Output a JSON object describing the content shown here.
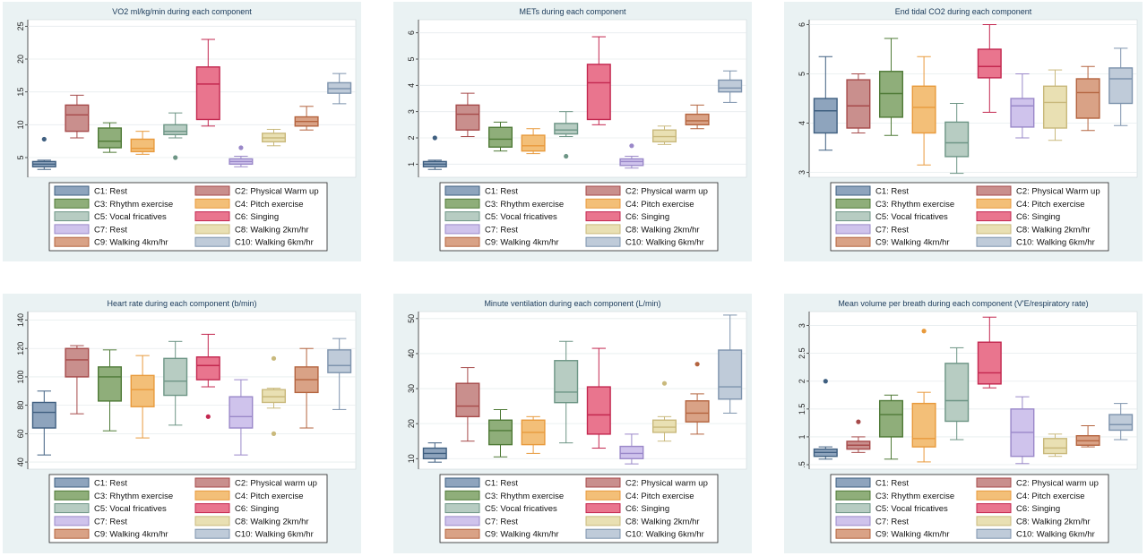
{
  "legend_entries": [
    [
      "C1: Rest",
      "C2: Physical warm up"
    ],
    [
      "C3: Rhythm exercise",
      "C4: Pitch exercise"
    ],
    [
      "C5: Vocal fricatives",
      "C6: Singing"
    ],
    [
      "C7: Rest",
      "C8: Walking 2km/hr"
    ],
    [
      "C9: Walking 4km/hr",
      "C10: Walking 6km/hr"
    ]
  ],
  "legend_entries_alt": [
    [
      "C1: Rest",
      "C2: Physical Warm up"
    ],
    [
      "C3: Rhythm exercise",
      "C4: Pitch exercise"
    ],
    [
      "C5: Vocal fricatives",
      "C6: Singing"
    ],
    [
      "C7: Rest",
      "C8: Walking 2km/hr"
    ],
    [
      "C9: Walking 4km/hr",
      "C10: Walking 6km/hr"
    ]
  ],
  "colors": {
    "fill": [
      "#8ea4bd",
      "#c98f8d",
      "#8fae7a",
      "#f3bf78",
      "#b7ccc2",
      "#e9758e",
      "#cfc3ec",
      "#e9e0b3",
      "#d9a286",
      "#bfcbd9"
    ],
    "stroke": [
      "#3f5f80",
      "#a64a4a",
      "#4f7a37",
      "#e89a3c",
      "#6d9585",
      "#c3274f",
      "#9a88c9",
      "#c9b97c",
      "#b4643f",
      "#7d93ad"
    ],
    "panel_bg": "#eaf2f3",
    "plot_bg": "#ffffff",
    "title_color": "#1a3a5a"
  },
  "chart_data": [
    {
      "type": "box",
      "title": "VO2 ml/kg/min during each component",
      "legend_alt": true,
      "ylim": [
        2,
        26
      ],
      "yticks": [
        5,
        10,
        15,
        20,
        25
      ],
      "series": [
        {
          "min": 3.2,
          "q1": 3.6,
          "median": 4.0,
          "q3": 4.4,
          "max": 4.6,
          "outliers": [
            7.8
          ]
        },
        {
          "min": 8.0,
          "q1": 9.0,
          "median": 11.5,
          "q3": 13.0,
          "max": 14.5,
          "outliers": []
        },
        {
          "min": 5.8,
          "q1": 6.5,
          "median": 7.5,
          "q3": 9.5,
          "max": 10.3,
          "outliers": []
        },
        {
          "min": 5.5,
          "q1": 5.9,
          "median": 6.4,
          "q3": 7.8,
          "max": 9.0,
          "outliers": []
        },
        {
          "min": 8.0,
          "q1": 8.5,
          "median": 9.0,
          "q3": 10.0,
          "max": 11.8,
          "outliers": [
            5.0
          ]
        },
        {
          "min": 9.8,
          "q1": 10.8,
          "median": 16.2,
          "q3": 18.8,
          "max": 23.0,
          "outliers": []
        },
        {
          "min": 3.6,
          "q1": 4.0,
          "median": 4.4,
          "q3": 4.8,
          "max": 5.2,
          "outliers": [
            6.5
          ]
        },
        {
          "min": 6.8,
          "q1": 7.4,
          "median": 8.0,
          "q3": 8.7,
          "max": 9.3,
          "outliers": []
        },
        {
          "min": 9.2,
          "q1": 9.8,
          "median": 10.5,
          "q3": 11.2,
          "max": 12.8,
          "outliers": []
        },
        {
          "min": 13.2,
          "q1": 14.8,
          "median": 15.5,
          "q3": 16.4,
          "max": 17.8,
          "outliers": []
        }
      ]
    },
    {
      "type": "box",
      "title": "METs during each component",
      "legend_alt": false,
      "ylim": [
        0.5,
        6.5
      ],
      "yticks": [
        1,
        2,
        3,
        4,
        5,
        6
      ],
      "series": [
        {
          "min": 0.8,
          "q1": 0.9,
          "median": 1.0,
          "q3": 1.1,
          "max": 1.15,
          "outliers": [
            2.0
          ]
        },
        {
          "min": 2.05,
          "q1": 2.3,
          "median": 2.9,
          "q3": 3.25,
          "max": 3.7,
          "outliers": []
        },
        {
          "min": 1.5,
          "q1": 1.65,
          "median": 1.95,
          "q3": 2.4,
          "max": 2.6,
          "outliers": []
        },
        {
          "min": 1.4,
          "q1": 1.5,
          "median": 1.7,
          "q3": 2.1,
          "max": 2.35,
          "outliers": []
        },
        {
          "min": 2.05,
          "q1": 2.15,
          "median": 2.3,
          "q3": 2.55,
          "max": 3.0,
          "outliers": [
            1.3
          ]
        },
        {
          "min": 2.5,
          "q1": 2.7,
          "median": 4.1,
          "q3": 4.8,
          "max": 5.85,
          "outliers": []
        },
        {
          "min": 0.85,
          "q1": 0.95,
          "median": 1.1,
          "q3": 1.2,
          "max": 1.3,
          "outliers": [
            1.7
          ]
        },
        {
          "min": 1.75,
          "q1": 1.85,
          "median": 2.05,
          "q3": 2.3,
          "max": 2.45,
          "outliers": []
        },
        {
          "min": 2.35,
          "q1": 2.5,
          "median": 2.65,
          "q3": 2.9,
          "max": 3.25,
          "outliers": []
        },
        {
          "min": 3.35,
          "q1": 3.75,
          "median": 3.9,
          "q3": 4.2,
          "max": 4.55,
          "outliers": []
        }
      ]
    },
    {
      "type": "box",
      "title": "End tidal CO2 during each component",
      "legend_alt": true,
      "ylim": [
        2.9,
        6.1
      ],
      "yticks": [
        3,
        4,
        5,
        6
      ],
      "series": [
        {
          "min": 3.45,
          "q1": 3.8,
          "median": 4.25,
          "q3": 4.5,
          "max": 5.35,
          "outliers": []
        },
        {
          "min": 3.8,
          "q1": 3.9,
          "median": 4.35,
          "q3": 4.88,
          "max": 5.0,
          "outliers": []
        },
        {
          "min": 3.75,
          "q1": 4.12,
          "median": 4.6,
          "q3": 5.05,
          "max": 5.72,
          "outliers": []
        },
        {
          "min": 3.15,
          "q1": 3.8,
          "median": 4.32,
          "q3": 4.75,
          "max": 5.35,
          "outliers": []
        },
        {
          "min": 2.98,
          "q1": 3.32,
          "median": 3.6,
          "q3": 4.02,
          "max": 4.4,
          "outliers": []
        },
        {
          "min": 4.22,
          "q1": 4.92,
          "median": 5.15,
          "q3": 5.5,
          "max": 6.0,
          "outliers": []
        },
        {
          "min": 3.7,
          "q1": 3.92,
          "median": 4.35,
          "q3": 4.5,
          "max": 5.0,
          "outliers": []
        },
        {
          "min": 3.65,
          "q1": 3.9,
          "median": 4.42,
          "q3": 4.75,
          "max": 5.08,
          "outliers": []
        },
        {
          "min": 3.85,
          "q1": 4.1,
          "median": 4.62,
          "q3": 4.9,
          "max": 5.15,
          "outliers": []
        },
        {
          "min": 3.95,
          "q1": 4.4,
          "median": 4.9,
          "q3": 5.12,
          "max": 5.52,
          "outliers": []
        }
      ]
    },
    {
      "type": "box",
      "title": "Heart rate during each component (b/min)",
      "legend_alt": false,
      "ylim": [
        35,
        146
      ],
      "yticks": [
        40,
        60,
        80,
        100,
        120,
        140
      ],
      "series": [
        {
          "min": 45,
          "q1": 64,
          "median": 75,
          "q3": 82,
          "max": 90,
          "outliers": []
        },
        {
          "min": 74,
          "q1": 100,
          "median": 112,
          "q3": 120,
          "max": 122,
          "outliers": []
        },
        {
          "min": 62,
          "q1": 83,
          "median": 100,
          "q3": 107,
          "max": 119,
          "outliers": []
        },
        {
          "min": 57,
          "q1": 79,
          "median": 91,
          "q3": 101,
          "max": 115,
          "outliers": []
        },
        {
          "min": 66,
          "q1": 87,
          "median": 97,
          "q3": 113,
          "max": 125,
          "outliers": []
        },
        {
          "min": 93,
          "q1": 98,
          "median": 108,
          "q3": 114,
          "max": 130,
          "outliers": [
            72
          ]
        },
        {
          "min": 45,
          "q1": 64,
          "median": 72,
          "q3": 86,
          "max": 98,
          "outliers": []
        },
        {
          "min": 78,
          "q1": 82,
          "median": 86,
          "q3": 91,
          "max": 92,
          "outliers": [
            113,
            60
          ]
        },
        {
          "min": 64,
          "q1": 89,
          "median": 98,
          "q3": 107,
          "max": 120,
          "outliers": []
        },
        {
          "min": 77,
          "q1": 103,
          "median": 108,
          "q3": 119,
          "max": 127,
          "outliers": []
        }
      ]
    },
    {
      "type": "box",
      "title": "Minute ventilation during each component (L/min)",
      "legend_alt": false,
      "ylim": [
        7,
        52
      ],
      "yticks": [
        10,
        20,
        30,
        40,
        50
      ],
      "series": [
        {
          "min": 9,
          "q1": 10,
          "median": 11.5,
          "q3": 13,
          "max": 14.5,
          "outliers": []
        },
        {
          "min": 15,
          "q1": 22,
          "median": 25,
          "q3": 31.5,
          "max": 36,
          "outliers": []
        },
        {
          "min": 10.5,
          "q1": 14,
          "median": 18,
          "q3": 21,
          "max": 24,
          "outliers": []
        },
        {
          "min": 11.5,
          "q1": 14,
          "median": 17.5,
          "q3": 21,
          "max": 22,
          "outliers": []
        },
        {
          "min": 14.5,
          "q1": 26,
          "median": 29,
          "q3": 38,
          "max": 43.5,
          "outliers": []
        },
        {
          "min": 13,
          "q1": 17,
          "median": 22.5,
          "q3": 30.5,
          "max": 41.5,
          "outliers": []
        },
        {
          "min": 8.5,
          "q1": 10,
          "median": 11.5,
          "q3": 13.5,
          "max": 17,
          "outliers": []
        },
        {
          "min": 15,
          "q1": 17.5,
          "median": 19,
          "q3": 21,
          "max": 22,
          "outliers": [
            31.5
          ]
        },
        {
          "min": 17,
          "q1": 20.5,
          "median": 23,
          "q3": 26.5,
          "max": 28.5,
          "outliers": [
            37
          ]
        },
        {
          "min": 23,
          "q1": 27,
          "median": 30.5,
          "q3": 41,
          "max": 51,
          "outliers": []
        }
      ]
    },
    {
      "type": "box",
      "title": "Mean volume per breath during each component (V'E/respiratory rate)",
      "legend_alt": false,
      "ylim": [
        0.42,
        3.25
      ],
      "yticks": [
        0.5,
        1,
        1.5,
        2,
        2.5,
        3
      ],
      "ytick_labels": [
        ".5",
        "1",
        "1.5",
        "2",
        "2.5",
        "3"
      ],
      "series": [
        {
          "min": 0.6,
          "q1": 0.65,
          "median": 0.72,
          "q3": 0.78,
          "max": 0.82,
          "outliers": [
            2.0
          ]
        },
        {
          "min": 0.72,
          "q1": 0.78,
          "median": 0.85,
          "q3": 0.92,
          "max": 1.0,
          "outliers": [
            1.27
          ]
        },
        {
          "min": 0.6,
          "q1": 1.0,
          "median": 1.4,
          "q3": 1.65,
          "max": 1.75,
          "outliers": []
        },
        {
          "min": 0.55,
          "q1": 0.82,
          "median": 0.97,
          "q3": 1.6,
          "max": 1.8,
          "outliers": [
            2.9
          ]
        },
        {
          "min": 0.95,
          "q1": 1.28,
          "median": 1.65,
          "q3": 2.32,
          "max": 2.6,
          "outliers": []
        },
        {
          "min": 1.88,
          "q1": 1.95,
          "median": 2.15,
          "q3": 2.7,
          "max": 3.15,
          "outliers": []
        },
        {
          "min": 0.52,
          "q1": 0.65,
          "median": 1.08,
          "q3": 1.5,
          "max": 1.72,
          "outliers": []
        },
        {
          "min": 0.65,
          "q1": 0.7,
          "median": 0.8,
          "q3": 0.97,
          "max": 1.05,
          "outliers": []
        },
        {
          "min": 0.82,
          "q1": 0.85,
          "median": 0.93,
          "q3": 1.02,
          "max": 1.2,
          "outliers": []
        },
        {
          "min": 0.95,
          "q1": 1.12,
          "median": 1.22,
          "q3": 1.4,
          "max": 1.6,
          "outliers": []
        }
      ]
    }
  ]
}
